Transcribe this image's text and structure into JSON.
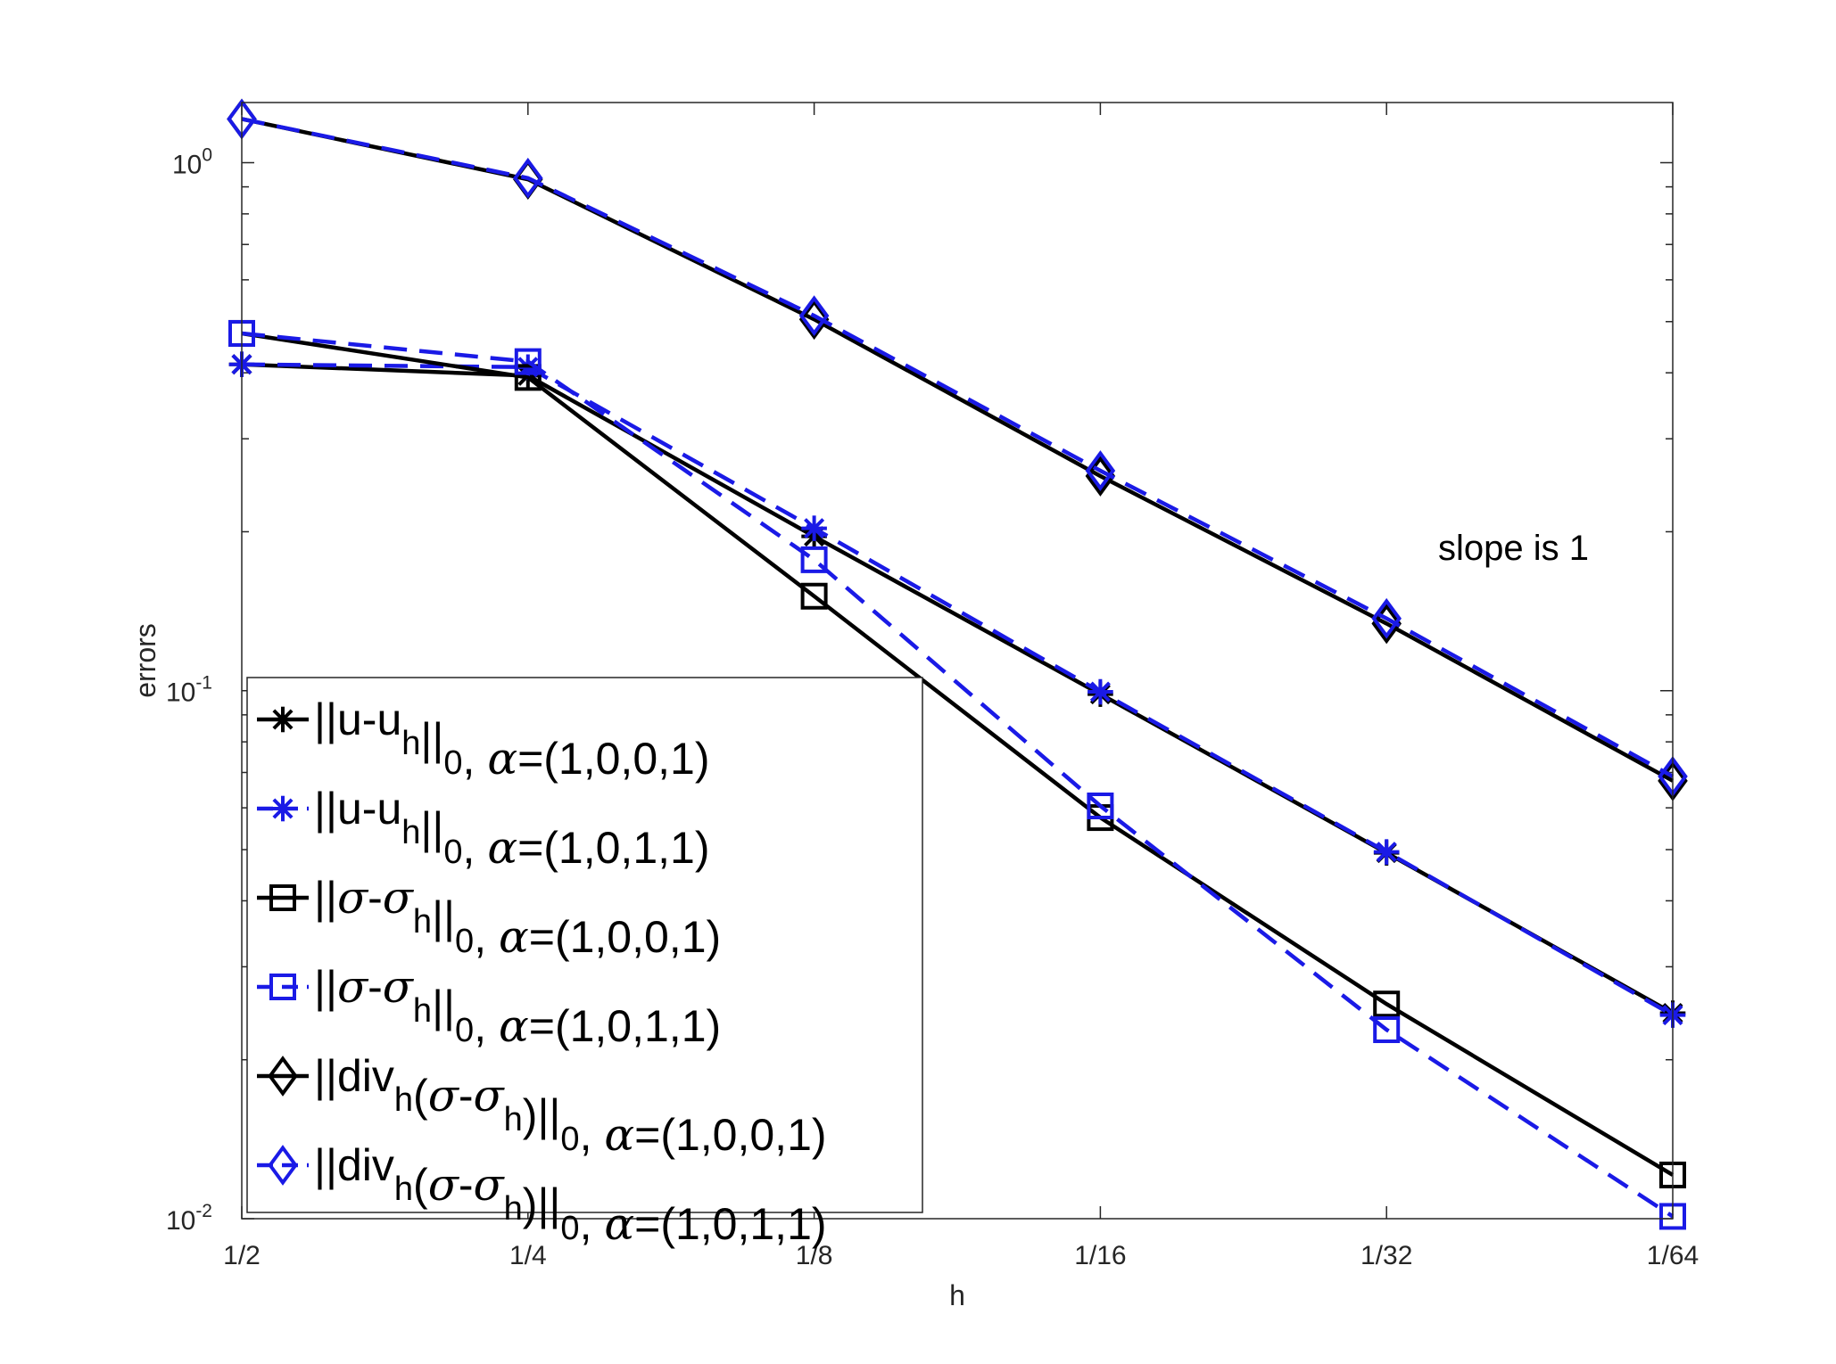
{
  "chart_data": {
    "type": "line",
    "title": "",
    "xlabel": "h",
    "ylabel": "errors",
    "yscale": "log",
    "ylim": [
      0.01,
      1.3
    ],
    "x": [
      0.5,
      0.25,
      0.125,
      0.0625,
      0.03125,
      0.015625
    ],
    "x_tick_labels": [
      "1/2",
      "1/4",
      "1/8",
      "1/16",
      "1/32",
      "1/64"
    ],
    "y_ticks": [
      {
        "value": 1,
        "base": "10",
        "exp": "0"
      },
      {
        "value": 0.1,
        "base": "10",
        "exp": "-1"
      },
      {
        "value": 0.01,
        "base": "10",
        "exp": "-2"
      }
    ],
    "grid": false,
    "legend_position": "bottom-left",
    "annotations": [
      {
        "text": "slope is 1"
      }
    ],
    "series": [
      {
        "key": "u_a",
        "color": "#000000",
        "dash": false,
        "marker": "asterisk",
        "values": [
          0.415,
          0.395,
          0.196,
          0.0985,
          0.0493,
          0.0245
        ]
      },
      {
        "key": "u_b",
        "color": "#1a1ae6",
        "dash": true,
        "marker": "asterisk",
        "values": [
          0.415,
          0.41,
          0.203,
          0.0995,
          0.0495,
          0.0243
        ]
      },
      {
        "key": "s_a",
        "color": "#000000",
        "dash": false,
        "marker": "square",
        "values": [
          0.475,
          0.392,
          0.151,
          0.0575,
          0.0255,
          0.0121
        ]
      },
      {
        "key": "s_b",
        "color": "#1a1ae6",
        "dash": true,
        "marker": "square",
        "values": [
          0.475,
          0.42,
          0.177,
          0.0605,
          0.0228,
          0.0101
        ]
      },
      {
        "key": "d_a",
        "color": "#000000",
        "dash": false,
        "marker": "diamond",
        "values": [
          1.21,
          0.93,
          0.505,
          0.255,
          0.134,
          0.0675
        ]
      },
      {
        "key": "d_b",
        "color": "#1a1ae6",
        "dash": true,
        "marker": "diamond",
        "values": [
          1.21,
          0.935,
          0.513,
          0.261,
          0.137,
          0.0688
        ]
      }
    ],
    "legend": [
      {
        "series": "u_a",
        "norm_open": "||",
        "body": "u-u",
        "body_sub": "h",
        "norm_close": "||",
        "norm_sub": "0",
        "sep": ", ",
        "alpha": "α",
        "params": "=(1,0,0,1)"
      },
      {
        "series": "u_b",
        "norm_open": "||",
        "body": "u-u",
        "body_sub": "h",
        "norm_close": "||",
        "norm_sub": "0",
        "sep": ",  ",
        "alpha": "α",
        "params": "=(1,0,1,1)"
      },
      {
        "series": "s_a",
        "norm_open": "||",
        "sigma": "σ",
        "dash_sigma": "-σ",
        "body_sub": "h",
        "norm_close": "||",
        "norm_sub": "0",
        "sep": ", ",
        "alpha": "α",
        "params": "=(1,0,0,1)"
      },
      {
        "series": "s_b",
        "norm_open": "||",
        "sigma": "σ",
        "dash_sigma": "-σ",
        "body_sub": "h",
        "norm_close": "||",
        "norm_sub": "0",
        "sep": ", ",
        "alpha": "α",
        "params": "=(1,0,1,1)"
      },
      {
        "series": "d_a",
        "norm_open": "||",
        "div": "div",
        "div_sub": "h",
        "paren_open": "(",
        "sigma": "σ",
        "dash_sigma": "-σ",
        "body_sub": "h",
        "paren_close": ")",
        "norm_close": "||",
        "norm_sub": "0",
        "sep": ", ",
        "alpha": "α",
        "params": "=(1,0,0,1)"
      },
      {
        "series": "d_b",
        "norm_open": "||",
        "div": "div",
        "div_sub": "h",
        "paren_open": "(",
        "sigma": "σ",
        "dash_sigma": "-σ",
        "body_sub": "h",
        "paren_close": ")",
        "norm_close": "||",
        "norm_sub": "0",
        "sep": ", ",
        "alpha": "α",
        "params": "=(1,0,1,1)"
      }
    ]
  }
}
